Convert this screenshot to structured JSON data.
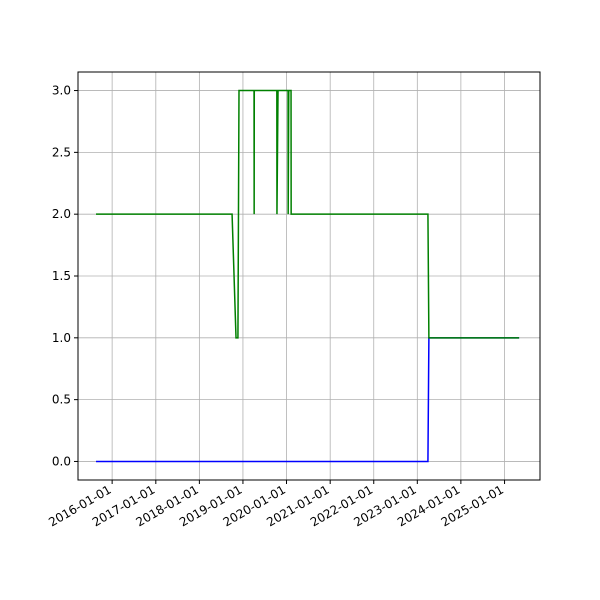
{
  "chart_data": {
    "type": "line",
    "x": [
      "2015-08-19",
      "2018-10-02",
      "2018-11-04",
      "2018-11-20",
      "2018-11-29",
      "2019-04-04",
      "2019-04-05",
      "2019-04-06",
      "2019-10-12",
      "2019-10-13",
      "2019-10-22",
      "2020-01-14",
      "2020-01-15",
      "2020-01-20",
      "2020-02-08",
      "2020-02-09",
      "2023-03-31",
      "2023-04-08",
      "2025-05-03"
    ],
    "series": [
      {
        "color": "#0000ff",
        "values": [
          0,
          0,
          0,
          0,
          0,
          0,
          0,
          0,
          0,
          0,
          0,
          0,
          0,
          0,
          0,
          0,
          0,
          1,
          1
        ]
      },
      {
        "color": "#008000",
        "values": [
          2,
          2,
          1,
          1,
          3,
          3,
          2,
          3,
          3,
          2,
          3,
          3,
          2,
          3,
          3,
          2,
          2,
          1,
          1
        ]
      }
    ],
    "xlim": [
      "2015-03-21",
      "2025-10-25"
    ],
    "xticks": [
      "2016-01-01",
      "2017-01-01",
      "2018-01-01",
      "2019-01-01",
      "2020-01-01",
      "2021-01-01",
      "2022-01-01",
      "2023-01-01",
      "2024-01-01",
      "2025-01-01"
    ],
    "ylim": [
      -0.15,
      3.15
    ],
    "yticks": [
      {
        "value": 0,
        "label": "0.0"
      },
      {
        "value": 0.5,
        "label": "0.5"
      },
      {
        "value": 1,
        "label": "1.0"
      },
      {
        "value": 1.5,
        "label": "1.5"
      },
      {
        "value": 2,
        "label": "2.0"
      },
      {
        "value": 2.5,
        "label": "2.5"
      },
      {
        "value": 3,
        "label": "3.0"
      }
    ],
    "grid": true
  }
}
